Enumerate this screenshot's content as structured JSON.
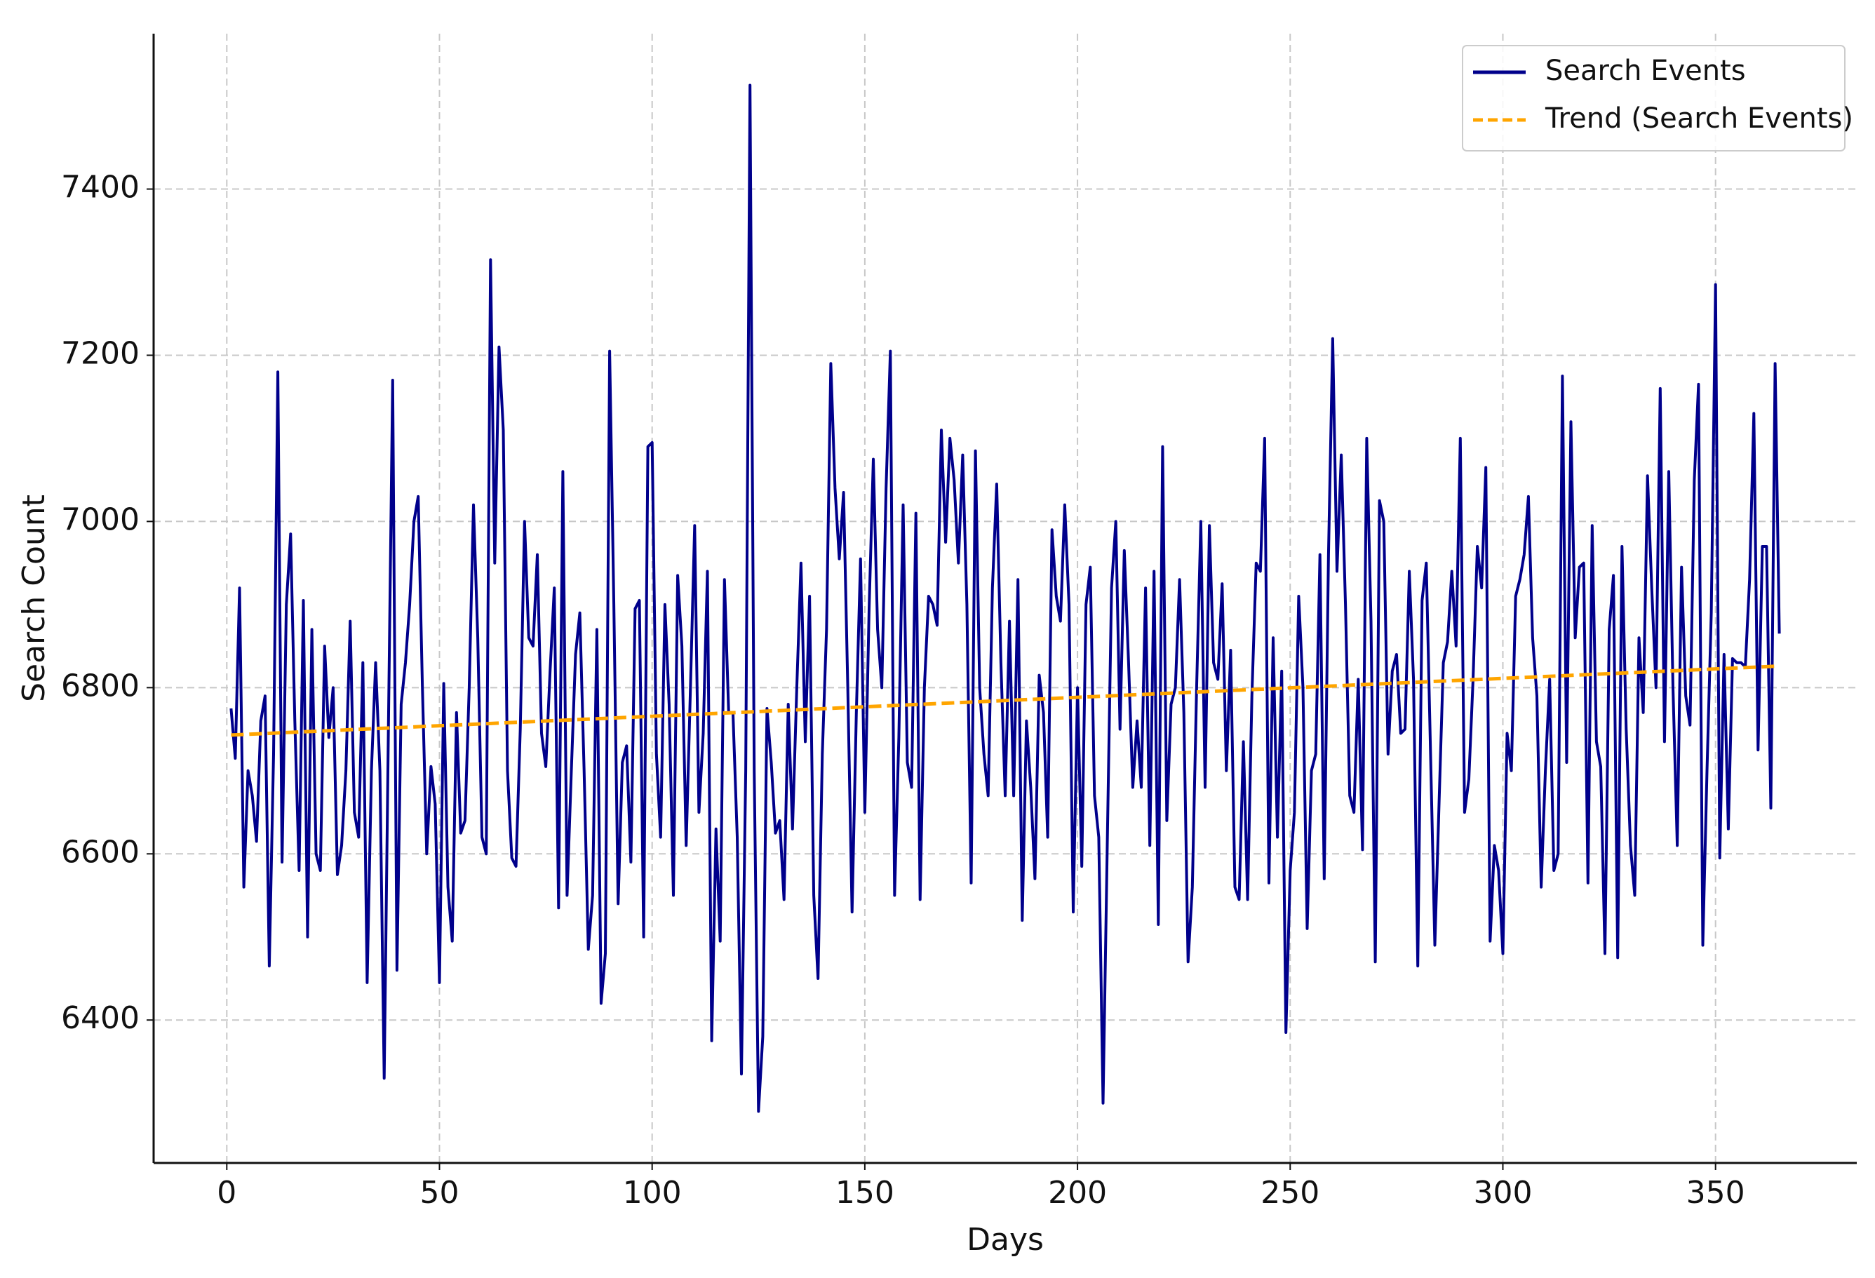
{
  "chart_data": {
    "type": "line",
    "x_label": "Days",
    "y_label": "Search Count",
    "xlim": [
      -17.2,
      383.2
    ],
    "ylim": [
      6228,
      7587
    ],
    "xticks": [
      0,
      50,
      100,
      150,
      200,
      250,
      300,
      350
    ],
    "yticks": [
      6400,
      6600,
      6800,
      7000,
      7200,
      7400
    ],
    "grid": true,
    "legend": "upper right",
    "x": [
      1,
      2,
      3,
      4,
      5,
      6,
      7,
      8,
      9,
      10,
      11,
      12,
      13,
      14,
      15,
      16,
      17,
      18,
      19,
      20,
      21,
      22,
      23,
      24,
      25,
      26,
      27,
      28,
      29,
      30,
      31,
      32,
      33,
      34,
      35,
      36,
      37,
      38,
      39,
      40,
      41,
      42,
      43,
      44,
      45,
      46,
      47,
      48,
      49,
      50,
      51,
      52,
      53,
      54,
      55,
      56,
      57,
      58,
      59,
      60,
      61,
      62,
      63,
      64,
      65,
      66,
      67,
      68,
      69,
      70,
      71,
      72,
      73,
      74,
      75,
      76,
      77,
      78,
      79,
      80,
      81,
      82,
      83,
      84,
      85,
      86,
      87,
      88,
      89,
      90,
      91,
      92,
      93,
      94,
      95,
      96,
      97,
      98,
      99,
      100,
      101,
      102,
      103,
      104,
      105,
      106,
      107,
      108,
      109,
      110,
      111,
      112,
      113,
      114,
      115,
      116,
      117,
      118,
      119,
      120,
      121,
      122,
      123,
      124,
      125,
      126,
      127,
      128,
      129,
      130,
      131,
      132,
      133,
      134,
      135,
      136,
      137,
      138,
      139,
      140,
      141,
      142,
      143,
      144,
      145,
      146,
      147,
      148,
      149,
      150,
      151,
      152,
      153,
      154,
      155,
      156,
      157,
      158,
      159,
      160,
      161,
      162,
      163,
      164,
      165,
      166,
      167,
      168,
      169,
      170,
      171,
      172,
      173,
      174,
      175,
      176,
      177,
      178,
      179,
      180,
      181,
      182,
      183,
      184,
      185,
      186,
      187,
      188,
      189,
      190,
      191,
      192,
      193,
      194,
      195,
      196,
      197,
      198,
      199,
      200,
      201,
      202,
      203,
      204,
      205,
      206,
      207,
      208,
      209,
      210,
      211,
      212,
      213,
      214,
      215,
      216,
      217,
      218,
      219,
      220,
      221,
      222,
      223,
      224,
      225,
      226,
      227,
      228,
      229,
      230,
      231,
      232,
      233,
      234,
      235,
      236,
      237,
      238,
      239,
      240,
      241,
      242,
      243,
      244,
      245,
      246,
      247,
      248,
      249,
      250,
      251,
      252,
      253,
      254,
      255,
      256,
      257,
      258,
      259,
      260,
      261,
      262,
      263,
      264,
      265,
      266,
      267,
      268,
      269,
      270,
      271,
      272,
      273,
      274,
      275,
      276,
      277,
      278,
      279,
      280,
      281,
      282,
      283,
      284,
      285,
      286,
      287,
      288,
      289,
      290,
      291,
      292,
      293,
      294,
      295,
      296,
      297,
      298,
      299,
      300,
      301,
      302,
      303,
      304,
      305,
      306,
      307,
      308,
      309,
      310,
      311,
      312,
      313,
      314,
      315,
      316,
      317,
      318,
      319,
      320,
      321,
      322,
      323,
      324,
      325,
      326,
      327,
      328,
      329,
      330,
      331,
      332,
      333,
      334,
      335,
      336,
      337,
      338,
      339,
      340,
      341,
      342,
      343,
      344,
      345,
      346,
      347,
      348,
      349,
      350,
      351,
      352,
      353,
      354,
      355,
      356,
      357,
      358,
      359,
      360,
      361,
      362,
      363,
      364,
      365
    ],
    "series": [
      {
        "name": "Search Events",
        "color": "#00008b",
        "values": [
          6775,
          6715,
          6920,
          6560,
          6700,
          6670,
          6615,
          6760,
          6790,
          6465,
          6720,
          7180,
          6590,
          6900,
          6985,
          6760,
          6580,
          6905,
          6500,
          6870,
          6600,
          6580,
          6850,
          6740,
          6800,
          6575,
          6610,
          6700,
          6880,
          6650,
          6620,
          6830,
          6445,
          6700,
          6830,
          6700,
          6330,
          6750,
          7170,
          6460,
          6780,
          6830,
          6900,
          7000,
          7030,
          6800,
          6600,
          6705,
          6660,
          6445,
          6805,
          6560,
          6495,
          6770,
          6625,
          6640,
          6800,
          7020,
          6860,
          6620,
          6600,
          7315,
          6950,
          7210,
          7110,
          6700,
          6595,
          6585,
          6750,
          7000,
          6860,
          6850,
          6960,
          6745,
          6705,
          6820,
          6920,
          6535,
          7060,
          6550,
          6700,
          6840,
          6890,
          6700,
          6485,
          6550,
          6870,
          6420,
          6480,
          7205,
          6900,
          6540,
          6710,
          6730,
          6590,
          6895,
          6905,
          6500,
          7090,
          7095,
          6720,
          6620,
          6900,
          6780,
          6550,
          6935,
          6850,
          6610,
          6800,
          6995,
          6650,
          6745,
          6940,
          6375,
          6630,
          6495,
          6930,
          6770,
          6770,
          6620,
          6335,
          6700,
          7525,
          6700,
          6290,
          6380,
          6775,
          6710,
          6625,
          6640,
          6545,
          6780,
          6630,
          6800,
          6950,
          6735,
          6910,
          6550,
          6450,
          6720,
          6870,
          7190,
          7040,
          6955,
          7035,
          6800,
          6530,
          6770,
          6955,
          6650,
          6895,
          7075,
          6870,
          6800,
          7040,
          7205,
          6550,
          6740,
          7020,
          6710,
          6680,
          7010,
          6545,
          6800,
          6910,
          6900,
          6875,
          7110,
          6975,
          7100,
          7050,
          6950,
          7080,
          6900,
          6565,
          7085,
          6800,
          6720,
          6670,
          6920,
          7045,
          6830,
          6670,
          6880,
          6670,
          6930,
          6520,
          6760,
          6680,
          6570,
          6815,
          6770,
          6620,
          6990,
          6910,
          6880,
          7020,
          6900,
          6530,
          6800,
          6585,
          6900,
          6945,
          6670,
          6620,
          6300,
          6610,
          6920,
          7000,
          6750,
          6965,
          6830,
          6680,
          6760,
          6680,
          6920,
          6610,
          6940,
          6515,
          7090,
          6640,
          6780,
          6800,
          6930,
          6770,
          6470,
          6560,
          6800,
          7000,
          6680,
          6995,
          6830,
          6810,
          6925,
          6700,
          6845,
          6560,
          6545,
          6735,
          6545,
          6790,
          6950,
          6940,
          7100,
          6565,
          6860,
          6620,
          6820,
          6385,
          6580,
          6650,
          6910,
          6800,
          6510,
          6700,
          6720,
          6960,
          6570,
          6960,
          7220,
          6940,
          7080,
          6900,
          6670,
          6650,
          6810,
          6605,
          7100,
          6880,
          6470,
          7025,
          7000,
          6720,
          6820,
          6840,
          6745,
          6750,
          6940,
          6810,
          6465,
          6905,
          6950,
          6720,
          6490,
          6660,
          6830,
          6855,
          6940,
          6850,
          7100,
          6650,
          6690,
          6810,
          6970,
          6920,
          7065,
          6495,
          6610,
          6580,
          6480,
          6745,
          6700,
          6910,
          6930,
          6960,
          7030,
          6860,
          6790,
          6560,
          6700,
          6810,
          6580,
          6600,
          7175,
          6710,
          7120,
          6860,
          6945,
          6950,
          6565,
          6995,
          6735,
          6705,
          6480,
          6870,
          6935,
          6475,
          6970,
          6750,
          6610,
          6550,
          6860,
          6770,
          7055,
          6920,
          6800,
          7160,
          6735,
          7060,
          6800,
          6610,
          6945,
          6790,
          6755,
          7050,
          7165,
          6490,
          6700,
          6890,
          7285,
          6595,
          6840,
          6630,
          6835,
          6830,
          6830,
          6825,
          6930,
          7130,
          6725,
          6970,
          6970,
          6655,
          7190,
          6865
        ]
      },
      {
        "name": "Trend (Search Events)",
        "color": "#ffa500",
        "dashed": true,
        "x": [
          1,
          365
        ],
        "values": [
          6743,
          6826
        ]
      }
    ]
  }
}
